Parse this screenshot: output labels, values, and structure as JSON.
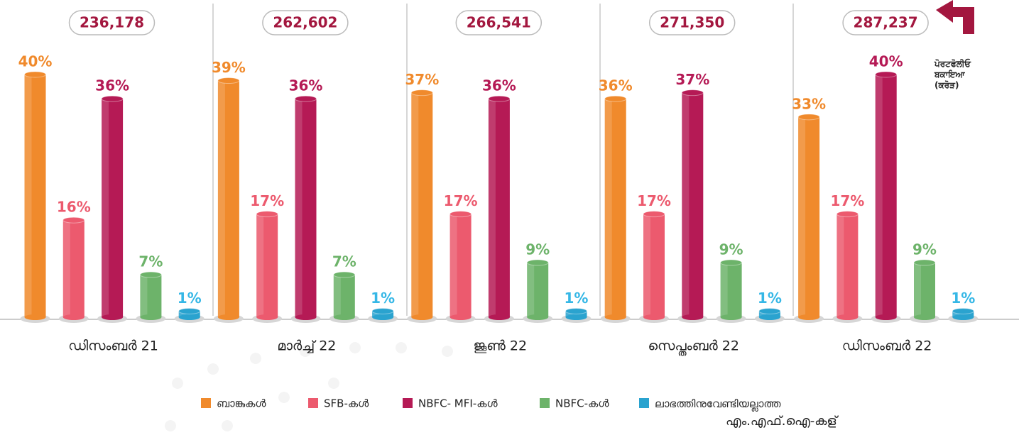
{
  "chart_data": {
    "type": "bar",
    "categories": [
      "ഡിസംബർ 21",
      "മാർച്ച് 22",
      "ജൂൺ 22",
      "സെപ്തംബർ 22",
      "ഡിസംബർ 22"
    ],
    "totals": [
      236178,
      262602,
      266541,
      271350,
      287237
    ],
    "totals_labels": [
      "236,178",
      "262,602",
      "266,541",
      "271,350",
      "287,237"
    ],
    "annotation": "ਪੋਰਟਫੋਲੀਓ ਬਕਾਇਆ (ਕਰੋੜ)",
    "series": [
      {
        "name": "ബാങ്കുകൾ",
        "color": "#f08a2c",
        "values": [
          40,
          39,
          37,
          36,
          33
        ],
        "value_labels": [
          "40%",
          "39%",
          "37%",
          "36%",
          "33%"
        ]
      },
      {
        "name": "SFB-കൾ",
        "color": "#ec5a6e",
        "values": [
          16,
          17,
          17,
          17,
          17
        ],
        "value_labels": [
          "16%",
          "17%",
          "17%",
          "17%",
          "17%"
        ]
      },
      {
        "name": "NBFC- MFI-കൾ",
        "color": "#b51a55",
        "values": [
          36,
          36,
          36,
          37,
          40
        ],
        "value_labels": [
          "36%",
          "36%",
          "36%",
          "37%",
          "40%"
        ]
      },
      {
        "name": "NBFC-കൾ",
        "color": "#6db36a",
        "values": [
          7,
          7,
          9,
          9,
          9
        ],
        "value_labels": [
          "7%",
          "7%",
          "9%",
          "9%",
          "9%"
        ]
      },
      {
        "name": "ലാഭത്തിനുവേണ്ടിയല്ലാത്ത എം.എഫ്.ഐ-കള്",
        "color": "#2aa3cf",
        "values": [
          1,
          1,
          1,
          1,
          1
        ],
        "value_labels": [
          "1%",
          "1%",
          "1%",
          "1%",
          "1%"
        ]
      }
    ]
  }
}
